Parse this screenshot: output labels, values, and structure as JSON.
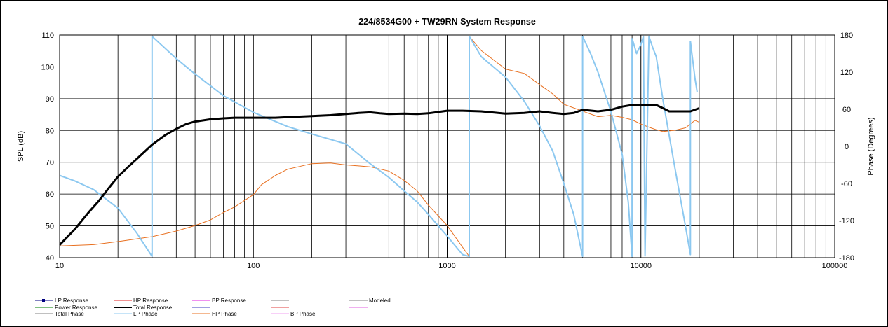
{
  "chart_data": {
    "type": "line",
    "title": "224/8534G00  + TW29RN     System Response",
    "xlabel": "",
    "ylabel": "SPL (dB)",
    "y2label": "Phase (Degrees)",
    "x_scale": "log",
    "xlim": [
      10,
      100000
    ],
    "ylim": [
      40,
      110
    ],
    "y2lim": [
      -180,
      180
    ],
    "grid": true,
    "x_tick_labels": [
      "10",
      "100",
      "1000",
      "10000",
      "100000"
    ],
    "y_ticks": [
      40,
      50,
      60,
      70,
      80,
      90,
      100,
      110
    ],
    "y2_ticks": [
      -180,
      -120,
      -60,
      0,
      60,
      120,
      180
    ],
    "legend_position": "bottom",
    "colors": {
      "lp_response": "#000080",
      "hp_response": "#e02020",
      "bp_response": "#e020e0",
      "power_response": "#008000",
      "total_response": "#000000",
      "total_phase": "#808080",
      "lp_phase": "#8cc8f0",
      "hp_phase": "#e87020",
      "bp_phase": "#f0a0f0",
      "modeled": "#808080"
    },
    "legend": [
      {
        "label": "LP Response",
        "color": "#000080",
        "marker": true
      },
      {
        "label": "HP Response",
        "color": "#e02020"
      },
      {
        "label": "BP Response",
        "color": "#e020e0"
      },
      {
        "label": "",
        "color": "#808080"
      },
      {
        "label": "Modeled",
        "color": "#808080"
      },
      {
        "label": "Power Response",
        "color": "#008000"
      },
      {
        "label": "Total Response",
        "color": "#000000",
        "thick": true
      },
      {
        "label": "",
        "color": "#4040c0"
      },
      {
        "label": "",
        "color": "#e04040"
      },
      {
        "label": "",
        "color": "#e060e0"
      },
      {
        "label": "Total Phase",
        "color": "#808080"
      },
      {
        "label": "LP Phase",
        "color": "#8cc8f0"
      },
      {
        "label": "HP Phase",
        "color": "#e87020"
      },
      {
        "label": "BP Phase",
        "color": "#f0a0f0"
      }
    ],
    "series": [
      {
        "name": "Total Response",
        "axis": "left",
        "color": "#000000",
        "points": [
          [
            10,
            44
          ],
          [
            12,
            49
          ],
          [
            14,
            54
          ],
          [
            16,
            58
          ],
          [
            18,
            62
          ],
          [
            20,
            65.5
          ],
          [
            23,
            69
          ],
          [
            26,
            72
          ],
          [
            30,
            75.5
          ],
          [
            35,
            78.5
          ],
          [
            40,
            80.5
          ],
          [
            45,
            82
          ],
          [
            50,
            82.8
          ],
          [
            60,
            83.5
          ],
          [
            70,
            83.8
          ],
          [
            80,
            84
          ],
          [
            100,
            84
          ],
          [
            130,
            84
          ],
          [
            150,
            84.2
          ],
          [
            200,
            84.5
          ],
          [
            250,
            84.8
          ],
          [
            300,
            85.2
          ],
          [
            350,
            85.5
          ],
          [
            400,
            85.7
          ],
          [
            450,
            85.4
          ],
          [
            500,
            85.2
          ],
          [
            600,
            85.3
          ],
          [
            700,
            85.2
          ],
          [
            800,
            85.4
          ],
          [
            900,
            85.8
          ],
          [
            1000,
            86.2
          ],
          [
            1200,
            86.2
          ],
          [
            1500,
            86
          ],
          [
            2000,
            85.3
          ],
          [
            2500,
            85.5
          ],
          [
            3000,
            86
          ],
          [
            3500,
            85.5
          ],
          [
            4000,
            85.2
          ],
          [
            4500,
            85.5
          ],
          [
            5000,
            86.5
          ],
          [
            6000,
            86
          ],
          [
            7000,
            86.5
          ],
          [
            8000,
            87.5
          ],
          [
            9000,
            88
          ],
          [
            10000,
            88
          ],
          [
            12000,
            88
          ],
          [
            13000,
            87
          ],
          [
            14000,
            86
          ],
          [
            16000,
            86
          ],
          [
            18000,
            86
          ],
          [
            20000,
            87
          ]
        ]
      },
      {
        "name": "HP Phase",
        "axis": "right",
        "color": "#e87020",
        "segments": [
          [
            [
              10,
              -161
            ],
            [
              15,
              -159
            ],
            [
              20,
              -154
            ],
            [
              30,
              -146
            ],
            [
              40,
              -137
            ],
            [
              50,
              -128
            ],
            [
              60,
              -119
            ],
            [
              70,
              -107
            ],
            [
              80,
              -98
            ],
            [
              100,
              -78
            ],
            [
              110,
              -62
            ],
            [
              130,
              -47
            ],
            [
              150,
              -37
            ],
            [
              200,
              -28
            ],
            [
              250,
              -27
            ],
            [
              300,
              -30
            ],
            [
              400,
              -33
            ],
            [
              500,
              -40
            ],
            [
              600,
              -55
            ],
            [
              700,
              -72
            ],
            [
              800,
              -95
            ],
            [
              1000,
              -128
            ],
            [
              1200,
              -163
            ],
            [
              1300,
              -178
            ]
          ],
          [
            [
              1300,
              178
            ],
            [
              1500,
              155
            ],
            [
              2000,
              125
            ],
            [
              2500,
              118
            ],
            [
              3000,
              100
            ],
            [
              3500,
              85
            ],
            [
              4000,
              68
            ],
            [
              5000,
              57
            ],
            [
              6000,
              48
            ],
            [
              7000,
              50
            ],
            [
              8000,
              47
            ],
            [
              9000,
              43
            ],
            [
              10000,
              36
            ],
            [
              11000,
              31
            ],
            [
              12000,
              27
            ],
            [
              13000,
              24
            ],
            [
              15000,
              26
            ],
            [
              17000,
              30
            ],
            [
              19000,
              42
            ],
            [
              20000,
              39
            ]
          ]
        ]
      },
      {
        "name": "LP Phase",
        "axis": "right",
        "color": "#8cc8f0",
        "segments": [
          [
            [
              10,
              -47
            ],
            [
              12,
              -56
            ],
            [
              15,
              -70
            ],
            [
              20,
              -100
            ],
            [
              25,
              -140
            ],
            [
              30,
              -178
            ]
          ],
          [
            [
              30,
              178
            ],
            [
              40,
              142
            ],
            [
              50,
              117
            ],
            [
              70,
              82
            ],
            [
              100,
              55
            ],
            [
              150,
              32
            ],
            [
              200,
              20
            ],
            [
              300,
              4
            ],
            [
              400,
              -28
            ],
            [
              500,
              -50
            ],
            [
              600,
              -72
            ],
            [
              700,
              -90
            ],
            [
              800,
              -110
            ],
            [
              1000,
              -145
            ],
            [
              1200,
              -175
            ],
            [
              1300,
              -178
            ]
          ],
          [
            [
              1300,
              178
            ],
            [
              1500,
              145
            ],
            [
              2000,
              112
            ],
            [
              2500,
              73
            ],
            [
              3000,
              33
            ],
            [
              3500,
              -7
            ],
            [
              4000,
              -60
            ],
            [
              4500,
              -110
            ],
            [
              5000,
              -178
            ]
          ],
          [
            [
              5000,
              178
            ],
            [
              5500,
              150
            ],
            [
              6000,
              120
            ],
            [
              7000,
              56
            ],
            [
              8000,
              -13
            ],
            [
              8600,
              -90
            ],
            [
              9000,
              -178
            ]
          ],
          [
            [
              9000,
              175
            ],
            [
              9500,
              150
            ],
            [
              10000,
              165
            ],
            [
              10300,
              178
            ]
          ],
          [
            [
              10500,
              -178
            ],
            [
              11000,
              178
            ],
            [
              11500,
              160
            ],
            [
              12000,
              145
            ],
            [
              13000,
              75
            ],
            [
              15000,
              -36
            ],
            [
              17000,
              -130
            ],
            [
              18000,
              -175
            ]
          ],
          [
            [
              18000,
              170
            ],
            [
              19000,
              110
            ],
            [
              19500,
              88
            ]
          ]
        ]
      }
    ]
  }
}
